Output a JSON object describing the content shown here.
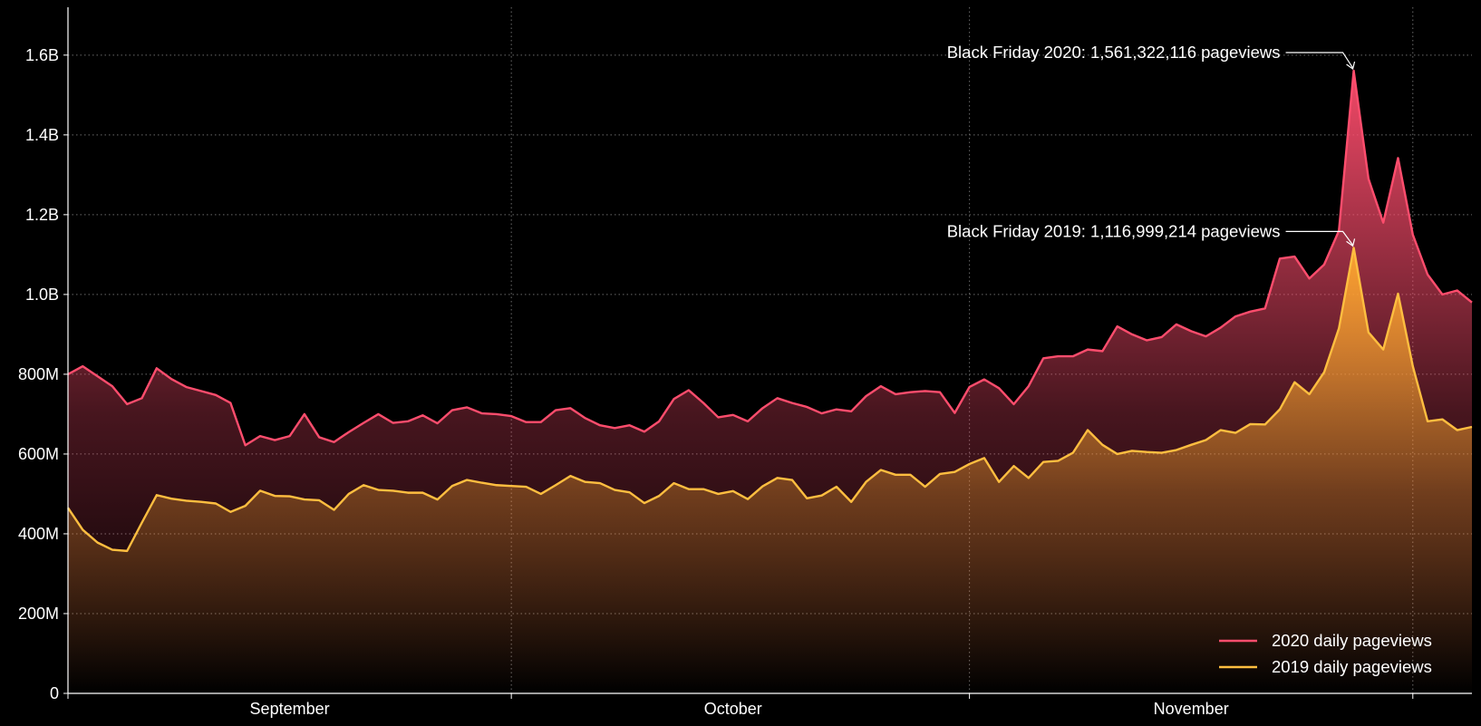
{
  "chart_data": {
    "type": "area",
    "x_start": "2020-09-01",
    "ylim": [
      0,
      1720000000
    ],
    "y_ticks": [
      {
        "value": 0,
        "label": "0"
      },
      {
        "value": 200000000,
        "label": "200M"
      },
      {
        "value": 400000000,
        "label": "400M"
      },
      {
        "value": 600000000,
        "label": "600M"
      },
      {
        "value": 800000000,
        "label": "800M"
      },
      {
        "value": 1000000000,
        "label": "1.0B"
      },
      {
        "value": 1200000000,
        "label": "1.2B"
      },
      {
        "value": 1400000000,
        "label": "1.4B"
      },
      {
        "value": 1600000000,
        "label": "1.6B"
      }
    ],
    "x_tick_labels": [
      {
        "date": "2020-09-16",
        "label": "September"
      },
      {
        "date": "2020-10-16",
        "label": "October"
      },
      {
        "date": "2020-11-16",
        "label": "November"
      }
    ],
    "x_minor_ticks": [
      "2020-10-01",
      "2020-11-01",
      "2020-12-01"
    ],
    "grid": true,
    "legend_position": "bottom-right",
    "series": [
      {
        "name": "2020 daily pageviews",
        "color": "#ff4d6d",
        "fill_color": "#ff4d6d",
        "values": [
          800,
          820,
          795,
          770,
          725,
          740,
          815,
          788,
          768,
          758,
          748,
          728,
          622,
          645,
          635,
          645,
          700,
          642,
          630,
          655,
          678,
          700,
          678,
          682,
          697,
          677,
          710,
          717,
          702,
          700,
          695,
          680,
          680,
          710,
          715,
          690,
          672,
          665,
          672,
          656,
          682,
          738,
          760,
          728,
          692,
          698,
          682,
          715,
          740,
          728,
          718,
          702,
          712,
          707,
          745,
          770,
          750,
          755,
          758,
          755,
          703,
          768,
          787,
          765,
          725,
          770,
          840,
          845,
          845,
          862,
          858,
          920,
          900,
          885,
          893,
          925,
          908,
          895,
          917,
          945,
          957,
          965,
          1090,
          1095,
          1040,
          1075,
          1160,
          1561,
          1290,
          1180,
          1342,
          1150,
          1050,
          1000,
          1010,
          980
        ]
      },
      {
        "name": "2019 daily pageviews",
        "color": "#ffbe40",
        "fill_color": "#ffa82e",
        "values": [
          465,
          410,
          378,
          360,
          357,
          428,
          497,
          488,
          483,
          480,
          476,
          455,
          470,
          508,
          495,
          494,
          486,
          484,
          460,
          500,
          522,
          510,
          508,
          503,
          503,
          486,
          520,
          535,
          528,
          522,
          520,
          518,
          500,
          522,
          545,
          530,
          527,
          510,
          504,
          477,
          495,
          527,
          512,
          512,
          500,
          507,
          487,
          519,
          540,
          535,
          489,
          496,
          518,
          480,
          530,
          560,
          548,
          548,
          518,
          550,
          555,
          575,
          590,
          530,
          570,
          540,
          580,
          583,
          603,
          660,
          623,
          600,
          608,
          605,
          603,
          610,
          623,
          635,
          660,
          653,
          675,
          674,
          712,
          780,
          750,
          805,
          915,
          1117,
          905,
          862,
          1002,
          820,
          682,
          687,
          660,
          668
        ]
      }
    ],
    "annotations": [
      {
        "series": 0,
        "date": "2020-11-27",
        "text": "Black Friday 2020: 1,561,322,116 pageviews"
      },
      {
        "series": 1,
        "date": "2020-11-27",
        "text": "Black Friday 2019: 1,116,999,214 pageviews"
      }
    ]
  }
}
